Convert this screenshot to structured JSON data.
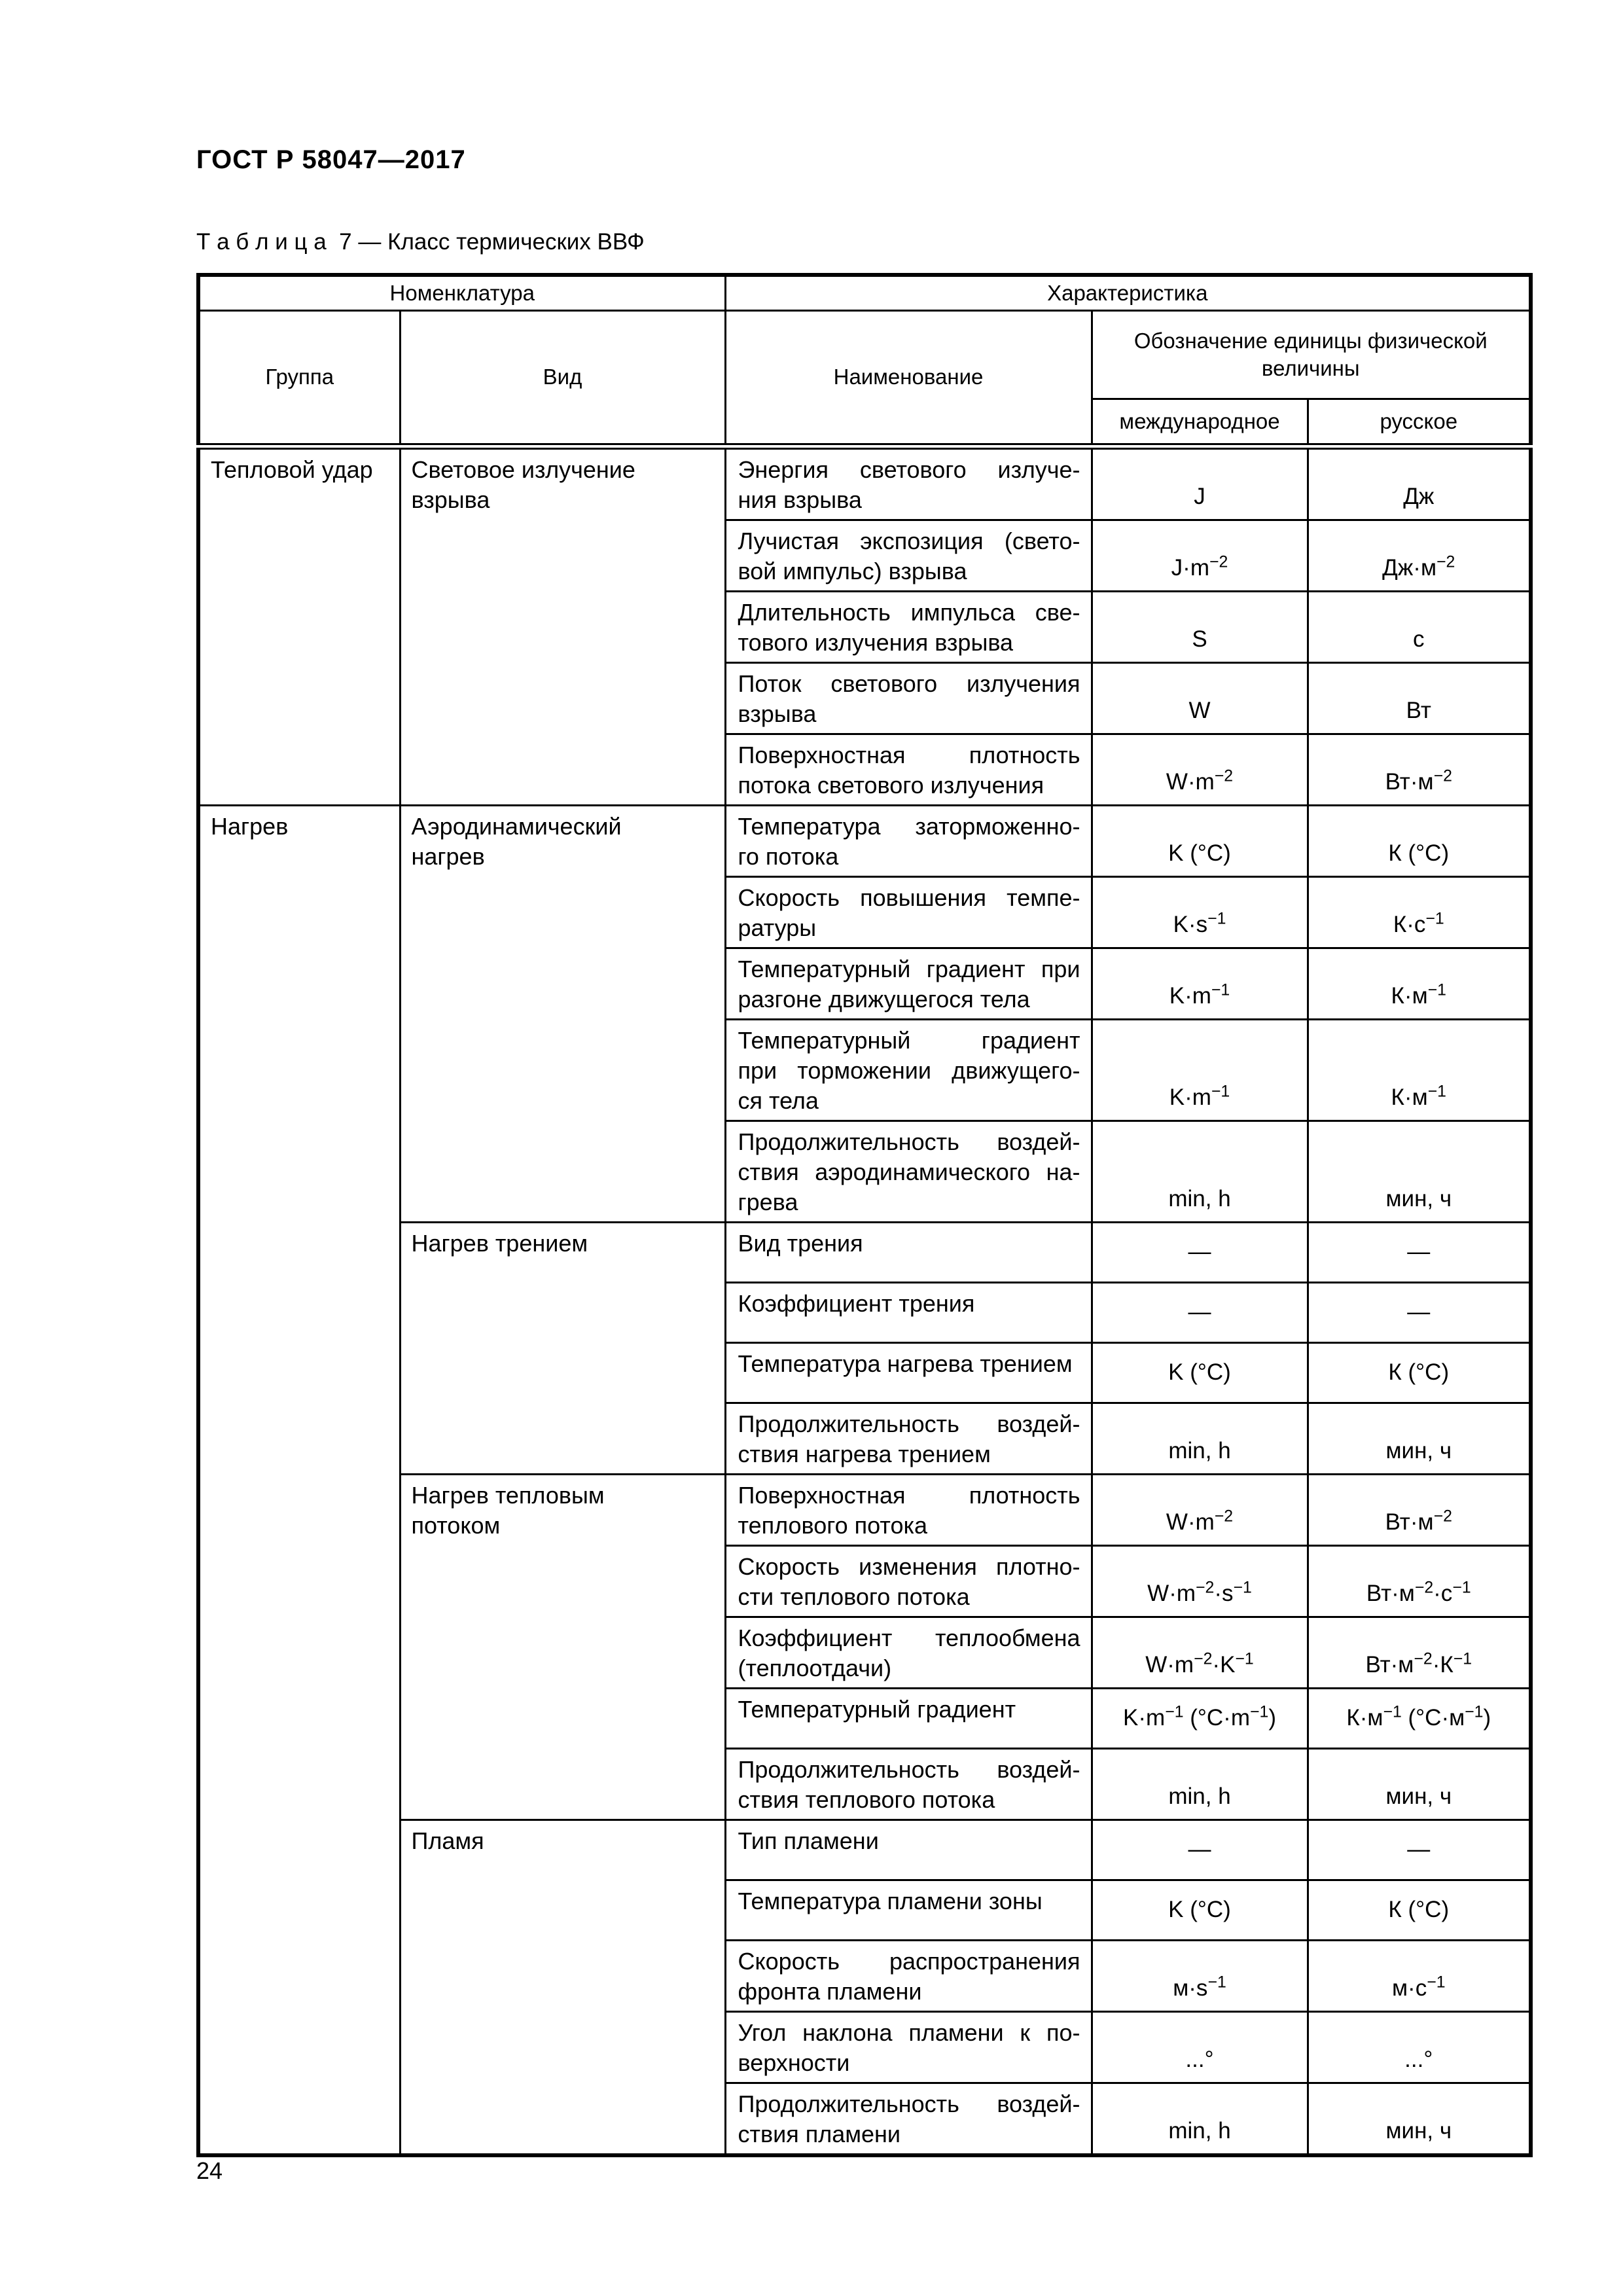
{
  "page": {
    "doc_number": "ГОСТ Р 58047—2017",
    "table_caption": "Т а б л и ц а  7 — Класс термических ВВФ",
    "page_number": "24"
  },
  "colors": {
    "background": "#ffffff",
    "text": "#000000",
    "border": "#000000"
  },
  "table": {
    "header": {
      "nomenclature": "Номенклатура",
      "characteristic": "Характеристика",
      "group": "Группа",
      "kind": "Вид",
      "name": "Наименование",
      "unit_designation": "Обозначение единицы физической величины",
      "international": "международное",
      "russian": "русское"
    },
    "groups": [
      {
        "group": "Тепловой удар",
        "kinds": [
          {
            "kind_lines": [
              "Световое излучение",
              "взрыва"
            ],
            "rows": [
              {
                "name_lines": [
                  "Энергия светового излуче-",
                  "ния взрыва"
                ],
                "intl": "J",
                "rus": "Дж"
              },
              {
                "name_lines": [
                  "Лучистая экспозиция (свето-",
                  "вой импульс) взрыва"
                ],
                "intl": "J·m^−2",
                "rus": "Дж·м^−2"
              },
              {
                "name_lines": [
                  "Длительность импульса све-",
                  "тового излучения взрыва"
                ],
                "intl": "S",
                "rus": "с"
              },
              {
                "name_lines": [
                  "Поток светового излучения",
                  "взрыва"
                ],
                "intl": "W",
                "rus": "Вт"
              },
              {
                "name_lines": [
                  "Поверхностная плотность",
                  "потока светового излучения"
                ],
                "intl": "W·m^−2",
                "rus": "Вт·м^−2"
              }
            ]
          }
        ]
      },
      {
        "group": "Нагрев",
        "kinds": [
          {
            "kind_lines": [
              "Аэродинамический",
              "нагрев"
            ],
            "rows": [
              {
                "name_lines": [
                  "Температура заторможенно-",
                  "го потока"
                ],
                "intl": "K (°C)",
                "rus": "К (°С)"
              },
              {
                "name_lines": [
                  "Скорость повышения темпе-",
                  "ратуры"
                ],
                "intl": "K·s^−1",
                "rus": "К·с^−1"
              },
              {
                "name_lines": [
                  "Температурный градиент при",
                  "разгоне движущегося тела"
                ],
                "intl": "K·m^−1",
                "rus": "К·м^−1"
              },
              {
                "name_lines": [
                  "Температурный градиент",
                  "при торможении движущего-",
                  "ся тела"
                ],
                "intl": "K·m^−1",
                "rus": "К·м^−1"
              },
              {
                "name_lines": [
                  "Продолжительность воздей-",
                  "ствия аэродинамического на-",
                  "грева"
                ],
                "intl": "min, h",
                "rus": "мин, ч"
              }
            ]
          },
          {
            "kind_lines": [
              "Нагрев трением"
            ],
            "rows": [
              {
                "name_lines": [
                  "Вид трения"
                ],
                "intl": "—",
                "rus": "—"
              },
              {
                "name_lines": [
                  "Коэффициент трения"
                ],
                "intl": "—",
                "rus": "—"
              },
              {
                "name_lines": [
                  "Температура нагрева трением"
                ],
                "intl": "K (°C)",
                "rus": "К (°С)"
              },
              {
                "name_lines": [
                  "Продолжительность воздей-",
                  "ствия нагрева трением"
                ],
                "intl": "min, h",
                "rus": "мин, ч"
              }
            ]
          },
          {
            "kind_lines": [
              "Нагрев тепловым",
              "потоком"
            ],
            "rows": [
              {
                "name_lines": [
                  "Поверхностная плотность",
                  "теплового потока"
                ],
                "intl": "W·m^−2",
                "rus": "Вт·м^−2"
              },
              {
                "name_lines": [
                  "Скорость изменения плотно-",
                  "сти теплового потока"
                ],
                "intl": "W·m^−2·s^−1",
                "rus": "Вт·м^−2·с^−1"
              },
              {
                "name_lines": [
                  "Коэффициент теплообмена",
                  "(теплоотдачи)"
                ],
                "intl": "W·m^−2·K^−1",
                "rus": "Вт·м^−2·К^−1"
              },
              {
                "name_lines": [
                  "Температурный градиент"
                ],
                "intl": "K·m^−1 (°C·m^−1)",
                "rus": "К·м^−1 (°С·м^−1)"
              },
              {
                "name_lines": [
                  "Продолжительность воздей-",
                  "ствия теплового потока"
                ],
                "intl": "min, h",
                "rus": "мин, ч"
              }
            ]
          },
          {
            "kind_lines": [
              "Пламя"
            ],
            "rows": [
              {
                "name_lines": [
                  "Тип пламени"
                ],
                "intl": "—",
                "rus": "—"
              },
              {
                "name_lines": [
                  "Температура пламени зоны"
                ],
                "intl": "K (°C)",
                "rus": "К (°С)"
              },
              {
                "name_lines": [
                  "Скорость распространения",
                  "фронта пламени"
                ],
                "intl": "м·s^−1",
                "rus": "м·с^−1"
              },
              {
                "name_lines": [
                  "Угол наклона пламени к по-",
                  "верхности"
                ],
                "intl": "...°",
                "rus": "...°"
              },
              {
                "name_lines": [
                  "Продолжительность воздей-",
                  "ствия пламени"
                ],
                "intl": "min, h",
                "rus": "мин, ч"
              }
            ]
          }
        ]
      }
    ]
  }
}
